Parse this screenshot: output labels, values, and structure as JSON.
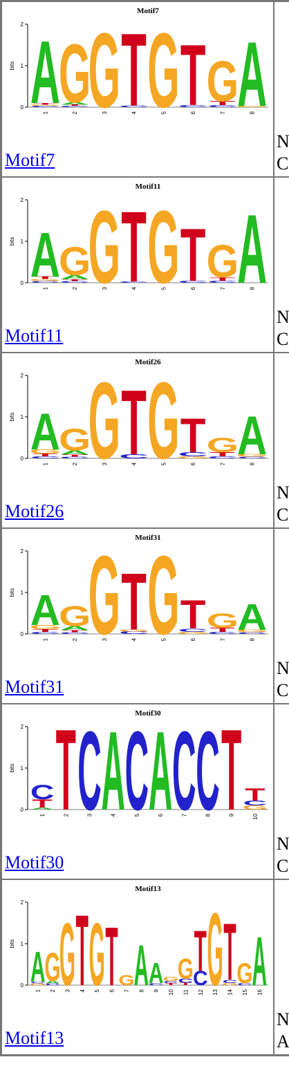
{
  "colors": {
    "A": "#22bb22",
    "C": "#2222cc",
    "G": "#f5a623",
    "T": "#d0021b",
    "link": "#0000ee"
  },
  "axis": {
    "ylabel": "bits",
    "ticks": [
      "0",
      "1",
      "2"
    ]
  },
  "motifs": [
    {
      "name": "Motif7",
      "link_label": "Motif7",
      "info_l1": "N",
      "info_l2": "C",
      "positions": [
        {
          "n": "1",
          "stack": [
            [
              "C",
              0.03
            ],
            [
              "G",
              0.03
            ],
            [
              "T",
              0.04
            ],
            [
              "A",
              1.55
            ]
          ]
        },
        {
          "n": "2",
          "stack": [
            [
              "C",
              0.03
            ],
            [
              "T",
              0.03
            ],
            [
              "A",
              0.06
            ],
            [
              "G",
              1.45
            ]
          ]
        },
        {
          "n": "3",
          "stack": [
            [
              "G",
              1.85
            ]
          ]
        },
        {
          "n": "4",
          "stack": [
            [
              "C",
              0.04
            ],
            [
              "T",
              1.8
            ]
          ]
        },
        {
          "n": "5",
          "stack": [
            [
              "G",
              1.85
            ]
          ]
        },
        {
          "n": "6",
          "stack": [
            [
              "C",
              0.05
            ],
            [
              "T",
              1.5
            ]
          ]
        },
        {
          "n": "7",
          "stack": [
            [
              "C",
              0.05
            ],
            [
              "T",
              0.1
            ],
            [
              "G",
              1.0
            ]
          ]
        },
        {
          "n": "8",
          "stack": [
            [
              "G",
              0.03
            ],
            [
              "A",
              1.6
            ]
          ]
        }
      ]
    },
    {
      "name": "Motif11",
      "link_label": "Motif11",
      "info_l1": "N",
      "info_l2": "C",
      "positions": [
        {
          "n": "1",
          "stack": [
            [
              "C",
              0.04
            ],
            [
              "G",
              0.05
            ],
            [
              "T",
              0.06
            ],
            [
              "A",
              1.1
            ]
          ]
        },
        {
          "n": "2",
          "stack": [
            [
              "C",
              0.04
            ],
            [
              "T",
              0.04
            ],
            [
              "A",
              0.1
            ],
            [
              "G",
              0.7
            ]
          ]
        },
        {
          "n": "3",
          "stack": [
            [
              "G",
              1.8
            ]
          ]
        },
        {
          "n": "4",
          "stack": [
            [
              "C",
              0.03
            ],
            [
              "T",
              1.75
            ]
          ]
        },
        {
          "n": "5",
          "stack": [
            [
              "G",
              1.8
            ]
          ]
        },
        {
          "n": "6",
          "stack": [
            [
              "C",
              0.05
            ],
            [
              "T",
              1.3
            ]
          ]
        },
        {
          "n": "7",
          "stack": [
            [
              "C",
              0.05
            ],
            [
              "T",
              0.08
            ],
            [
              "G",
              0.8
            ]
          ]
        },
        {
          "n": "8",
          "stack": [
            [
              "A",
              1.7
            ]
          ]
        }
      ]
    },
    {
      "name": "Motif26",
      "link_label": "Motif26",
      "info_l1": "N",
      "info_l2": "C",
      "positions": [
        {
          "n": "1",
          "stack": [
            [
              "C",
              0.05
            ],
            [
              "T",
              0.07
            ],
            [
              "G",
              0.1
            ],
            [
              "A",
              0.9
            ]
          ]
        },
        {
          "n": "2",
          "stack": [
            [
              "C",
              0.04
            ],
            [
              "T",
              0.05
            ],
            [
              "A",
              0.1
            ],
            [
              "G",
              0.55
            ]
          ]
        },
        {
          "n": "3",
          "stack": [
            [
              "G",
              1.9
            ]
          ]
        },
        {
          "n": "4",
          "stack": [
            [
              "C",
              0.1
            ],
            [
              "T",
              1.6
            ]
          ]
        },
        {
          "n": "5",
          "stack": [
            [
              "G",
              1.9
            ]
          ]
        },
        {
          "n": "6",
          "stack": [
            [
              "G",
              0.05
            ],
            [
              "C",
              0.1
            ],
            [
              "T",
              0.85
            ]
          ]
        },
        {
          "n": "7",
          "stack": [
            [
              "C",
              0.05
            ],
            [
              "T",
              0.1
            ],
            [
              "G",
              0.35
            ]
          ]
        },
        {
          "n": "8",
          "stack": [
            [
              "C",
              0.04
            ],
            [
              "G",
              0.06
            ],
            [
              "A",
              0.95
            ]
          ]
        }
      ]
    },
    {
      "name": "Motif31",
      "link_label": "Motif31",
      "info_l1": "N",
      "info_l2": "C",
      "positions": [
        {
          "n": "1",
          "stack": [
            [
              "C",
              0.05
            ],
            [
              "T",
              0.07
            ],
            [
              "G",
              0.1
            ],
            [
              "A",
              0.75
            ]
          ]
        },
        {
          "n": "2",
          "stack": [
            [
              "C",
              0.04
            ],
            [
              "T",
              0.05
            ],
            [
              "A",
              0.1
            ],
            [
              "G",
              0.5
            ]
          ]
        },
        {
          "n": "3",
          "stack": [
            [
              "G",
              1.95
            ]
          ]
        },
        {
          "n": "4",
          "stack": [
            [
              "C",
              0.06
            ],
            [
              "G",
              0.05
            ],
            [
              "T",
              1.4
            ]
          ]
        },
        {
          "n": "5",
          "stack": [
            [
              "G",
              1.95
            ]
          ]
        },
        {
          "n": "6",
          "stack": [
            [
              "G",
              0.05
            ],
            [
              "C",
              0.08
            ],
            [
              "T",
              0.7
            ]
          ]
        },
        {
          "n": "7",
          "stack": [
            [
              "C",
              0.05
            ],
            [
              "T",
              0.1
            ],
            [
              "G",
              0.35
            ]
          ]
        },
        {
          "n": "8",
          "stack": [
            [
              "C",
              0.04
            ],
            [
              "G",
              0.06
            ],
            [
              "A",
              0.65
            ]
          ]
        }
      ]
    },
    {
      "name": "Motif30",
      "link_label": "Motif30",
      "info_l1": "N",
      "info_l2": "C",
      "positions": [
        {
          "n": "1",
          "stack": [
            [
              "A",
              0.05
            ],
            [
              "T",
              0.2
            ],
            [
              "C",
              0.35
            ]
          ]
        },
        {
          "n": "2",
          "stack": [
            [
              "T",
              2.0
            ]
          ]
        },
        {
          "n": "3",
          "stack": [
            [
              "C",
              1.95
            ]
          ]
        },
        {
          "n": "4",
          "stack": [
            [
              "A",
              1.95
            ]
          ]
        },
        {
          "n": "5",
          "stack": [
            [
              "C",
              1.95
            ]
          ]
        },
        {
          "n": "6",
          "stack": [
            [
              "A",
              1.95
            ]
          ]
        },
        {
          "n": "7",
          "stack": [
            [
              "C",
              1.95
            ]
          ]
        },
        {
          "n": "8",
          "stack": [
            [
              "C",
              1.95
            ]
          ]
        },
        {
          "n": "9",
          "stack": [
            [
              "T",
              2.0
            ]
          ]
        },
        {
          "n": "10",
          "stack": [
            [
              "G",
              0.1
            ],
            [
              "C",
              0.12
            ],
            [
              "T",
              0.3
            ]
          ]
        }
      ]
    },
    {
      "name": "Motif13",
      "link_label": "Motif13",
      "info_l1": "N",
      "info_l2": "A",
      "positions": [
        {
          "n": "1",
          "stack": [
            [
              "G",
              0.04
            ],
            [
              "C",
              0.04
            ],
            [
              "A",
              0.75
            ]
          ]
        },
        {
          "n": "2",
          "stack": [
            [
              "C",
              0.04
            ],
            [
              "A",
              0.06
            ],
            [
              "G",
              0.7
            ]
          ]
        },
        {
          "n": "3",
          "stack": [
            [
              "G",
              1.55
            ]
          ]
        },
        {
          "n": "4",
          "stack": [
            [
              "T",
              1.75
            ]
          ]
        },
        {
          "n": "5",
          "stack": [
            [
              "G",
              1.55
            ]
          ]
        },
        {
          "n": "6",
          "stack": [
            [
              "T",
              1.45
            ]
          ]
        },
        {
          "n": "7",
          "stack": [
            [
              "G",
              0.25
            ]
          ]
        },
        {
          "n": "8",
          "stack": [
            [
              "A",
              1.0
            ]
          ]
        },
        {
          "n": "9",
          "stack": [
            [
              "C",
              0.05
            ],
            [
              "A",
              0.5
            ]
          ]
        },
        {
          "n": "10",
          "stack": [
            [
              "T",
              0.05
            ],
            [
              "C",
              0.05
            ],
            [
              "G",
              0.1
            ]
          ]
        },
        {
          "n": "11",
          "stack": [
            [
              "T",
              0.06
            ],
            [
              "C",
              0.1
            ],
            [
              "G",
              0.5
            ]
          ]
        },
        {
          "n": "12",
          "stack": [
            [
              "C",
              0.35
            ],
            [
              "T",
              1.0
            ]
          ]
        },
        {
          "n": "13",
          "stack": [
            [
              "G",
              1.8
            ]
          ]
        },
        {
          "n": "14",
          "stack": [
            [
              "G",
              0.05
            ],
            [
              "C",
              0.08
            ],
            [
              "T",
              1.4
            ]
          ]
        },
        {
          "n": "15",
          "stack": [
            [
              "C",
              0.05
            ],
            [
              "G",
              0.5
            ]
          ]
        },
        {
          "n": "16",
          "stack": [
            [
              "A",
              1.2
            ]
          ]
        }
      ]
    }
  ]
}
